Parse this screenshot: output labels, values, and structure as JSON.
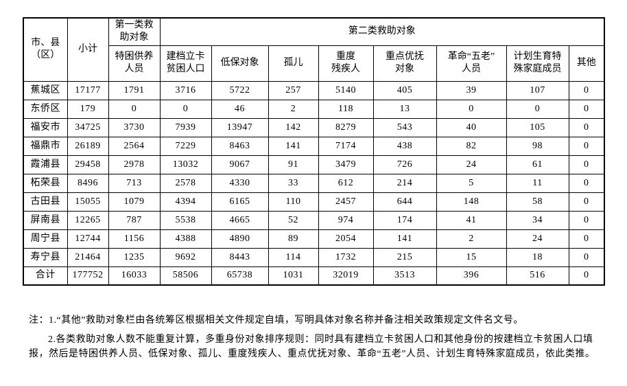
{
  "table": {
    "header": {
      "region": "市、县\n（区）",
      "subtotal": "小计",
      "category1": "第一类救\n助对象",
      "category1_sub": "特困供养\n人员",
      "category2": "第二类救助对象",
      "category2_subs": [
        "建档立卡\n贫困人口",
        "低保对象",
        "孤儿",
        "重度\n残疾人",
        "重点优抚\n对象",
        "革命“五老”\n人员",
        "计划生育特\n殊家庭成员",
        "其他"
      ]
    },
    "rows": [
      {
        "cells": [
          "蕉城区",
          17177,
          1791,
          3716,
          5722,
          257,
          5140,
          405,
          39,
          107,
          0
        ]
      },
      {
        "cells": [
          "东侨区",
          179,
          0,
          0,
          46,
          2,
          118,
          13,
          0,
          0,
          0
        ]
      },
      {
        "cells": [
          "福安市",
          34725,
          3730,
          7939,
          13947,
          142,
          8279,
          543,
          40,
          105,
          0
        ]
      },
      {
        "cells": [
          "福鼎市",
          26189,
          2564,
          7229,
          8463,
          141,
          7174,
          438,
          82,
          98,
          0
        ]
      },
      {
        "cells": [
          "霞浦县",
          29458,
          2978,
          13032,
          9067,
          91,
          3479,
          726,
          24,
          61,
          0
        ]
      },
      {
        "cells": [
          "柘荣县",
          8496,
          713,
          2578,
          4330,
          33,
          612,
          214,
          5,
          11,
          0
        ]
      },
      {
        "cells": [
          "古田县",
          15055,
          1079,
          4394,
          6165,
          110,
          2457,
          644,
          148,
          58,
          0
        ]
      },
      {
        "cells": [
          "屏南县",
          12265,
          787,
          5538,
          4665,
          52,
          974,
          174,
          41,
          34,
          0
        ]
      },
      {
        "cells": [
          "周宁县",
          12744,
          1156,
          4388,
          4890,
          89,
          2054,
          141,
          2,
          24,
          0
        ]
      },
      {
        "cells": [
          "寿宁县",
          21464,
          1235,
          9692,
          8443,
          114,
          1732,
          215,
          15,
          18,
          0
        ]
      },
      {
        "cells": [
          "合计",
          177752,
          16033,
          58506,
          65738,
          1031,
          32019,
          3513,
          396,
          516,
          0
        ]
      }
    ]
  },
  "notes": [
    "注：1.“其他”救助对象栏由各统筹区根据相关文件规定自填，写明具体对象名称并备注相关政策规定文件名文号。",
    "2.各类救助对象人数不能重复计算，多重身份对象排序规则：同时具有建档立卡贫困人口和其他身份的按建档立卡贫困人口填报，然后是特困供养人员、低保对象、孤儿、重度残疾人、重点优抚对象、革命“五老”人员、计划生育特殊家庭成员，依此类推。"
  ],
  "colors": {
    "text": "#000000",
    "border": "#000000",
    "background": "#ffffff"
  }
}
